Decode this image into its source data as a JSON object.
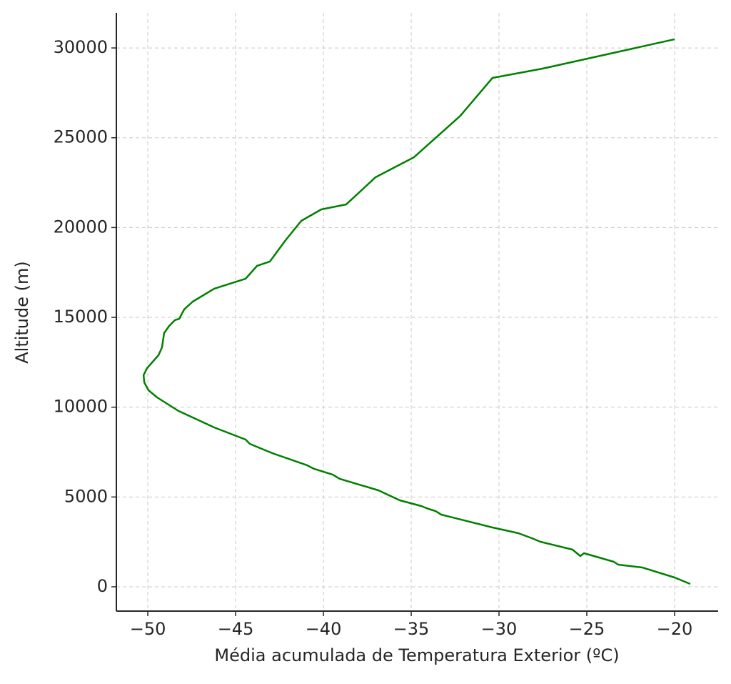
{
  "chart_data": {
    "type": "line",
    "xlabel": "Média acumulada de Temperatura Exterior (ºC)",
    "ylabel": "Altitude (m)",
    "x": [
      -19.11,
      -20,
      -21.83,
      -23.21,
      -23.46,
      -25.16,
      -25.37,
      -25.81,
      -27.64,
      -28.13,
      -28.9,
      -30.37,
      -33.29,
      -33.62,
      -34.02,
      -34.43,
      -35.65,
      -36.87,
      -39.07,
      -39.47,
      -40.53,
      -40.93,
      -42.8,
      -43.21,
      -44.19,
      -44.43,
      -46.22,
      -48.25,
      -49.47,
      -49.96,
      -50.2,
      -50.24,
      -50.04,
      -49.39,
      -49.19,
      -49.07,
      -48.78,
      -48.46,
      -48.21,
      -47.93,
      -47.44,
      -46.22,
      -44.43,
      -43.78,
      -43.05,
      -42.15,
      -41.26,
      -40.12,
      -38.7,
      -37.03,
      -34.84,
      -32.2,
      -30.37,
      -27.52,
      -20
    ],
    "values": [
      160,
      517,
      1074,
      1234,
      1393,
      1870,
      1711,
      2069,
      2507,
      2706,
      2984,
      3303,
      4019,
      4218,
      4337,
      4497,
      4815,
      5372,
      6009,
      6247,
      6566,
      6765,
      7401,
      7561,
      7959,
      8197,
      8874,
      9789,
      10545,
      10943,
      11381,
      11779,
      12177,
      12893,
      13331,
      14127,
      14524,
      14843,
      14922,
      15440,
      15877,
      16594,
      17151,
      17867,
      18106,
      19300,
      20374,
      21011,
      21290,
      22802,
      23916,
      26224,
      28333,
      28850,
      30482
    ],
    "color": "#008000",
    "xlim": [
      -51.79,
      -17.52
    ],
    "ylim": [
      -1353,
      31953
    ],
    "xticks": [
      {
        "value": -50,
        "label": "−50"
      },
      {
        "value": -45,
        "label": "−45"
      },
      {
        "value": -40,
        "label": "−40"
      },
      {
        "value": -35,
        "label": "−35"
      },
      {
        "value": -30,
        "label": "−30"
      },
      {
        "value": -25,
        "label": "−25"
      },
      {
        "value": -20,
        "label": "−20"
      }
    ],
    "yticks": [
      0,
      5000,
      10000,
      15000,
      20000,
      25000,
      30000
    ],
    "grid": true
  }
}
